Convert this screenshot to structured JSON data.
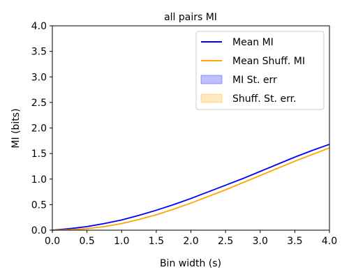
{
  "chart_data": {
    "type": "line",
    "title": "all pairs MI",
    "xlabel": "Bin width (s)",
    "ylabel": "MI (bits)",
    "xlim": [
      0.0,
      4.0
    ],
    "ylim": [
      0.0,
      4.0
    ],
    "xticks": [
      "0.0",
      "0.5",
      "1.0",
      "1.5",
      "2.0",
      "2.5",
      "3.0",
      "3.5",
      "4.0"
    ],
    "yticks": [
      "0.0",
      "0.5",
      "1.0",
      "1.5",
      "2.0",
      "2.5",
      "3.0",
      "3.5",
      "4.0"
    ],
    "grid": false,
    "legend_position": "top-right",
    "x": [
      0.0,
      0.25,
      0.5,
      0.75,
      1.0,
      1.25,
      1.5,
      1.75,
      2.0,
      2.25,
      2.5,
      2.75,
      3.0,
      3.25,
      3.5,
      3.75,
      4.0
    ],
    "series": [
      {
        "name": "Mean MI",
        "color": "#0000ff",
        "values": [
          0.0,
          0.03,
          0.07,
          0.13,
          0.2,
          0.29,
          0.39,
          0.5,
          0.62,
          0.75,
          0.88,
          1.01,
          1.15,
          1.29,
          1.43,
          1.56,
          1.68
        ],
        "stderr": 0.01
      },
      {
        "name": "Mean Shuff. MI",
        "color": "#ffa500",
        "values": [
          0.0,
          0.01,
          0.03,
          0.07,
          0.13,
          0.21,
          0.3,
          0.41,
          0.53,
          0.66,
          0.79,
          0.93,
          1.07,
          1.21,
          1.35,
          1.48,
          1.61
        ],
        "stderr": 0.01
      }
    ],
    "legend": [
      {
        "label": "Mean MI",
        "kind": "line",
        "color": "#0000ff"
      },
      {
        "label": "Mean Shuff. MI",
        "kind": "line",
        "color": "#ffa500"
      },
      {
        "label": "MI St. err",
        "kind": "patch",
        "color": "#0000ff"
      },
      {
        "label": "Shuff. St. err.",
        "kind": "patch",
        "color": "#ffa500"
      }
    ]
  }
}
